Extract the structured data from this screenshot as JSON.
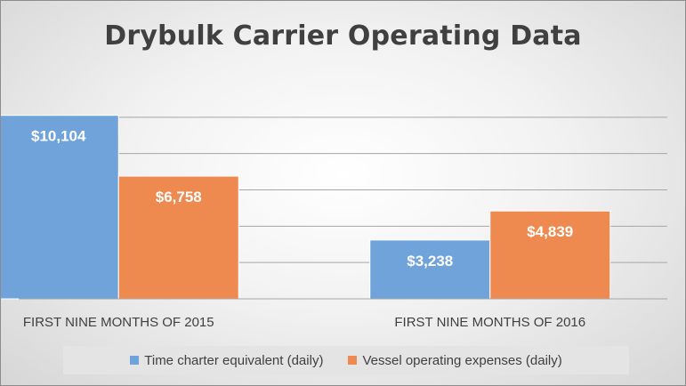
{
  "chart_data": {
    "type": "bar",
    "title": "Drybulk Carrier Operating Data",
    "xlabel": "",
    "ylabel": "",
    "categories": [
      "FIRST NINE MONTHS OF 2015",
      "FIRST NINE MONTHS OF 2016"
    ],
    "series": [
      {
        "name": "Time charter equivalent (daily)",
        "values": [
          10104,
          3238
        ],
        "labels": [
          "$10,104",
          "$3,238"
        ],
        "color": "#6fa3d9"
      },
      {
        "name": "Vessel operating expenses (daily)",
        "values": [
          6758,
          4839
        ],
        "labels": [
          "$6,758",
          "$4,839"
        ],
        "color": "#ee8a4f"
      }
    ],
    "ylim": [
      0,
      12000
    ],
    "grid": true,
    "legend_position": "bottom",
    "y_axis_ticks_shown": false
  }
}
